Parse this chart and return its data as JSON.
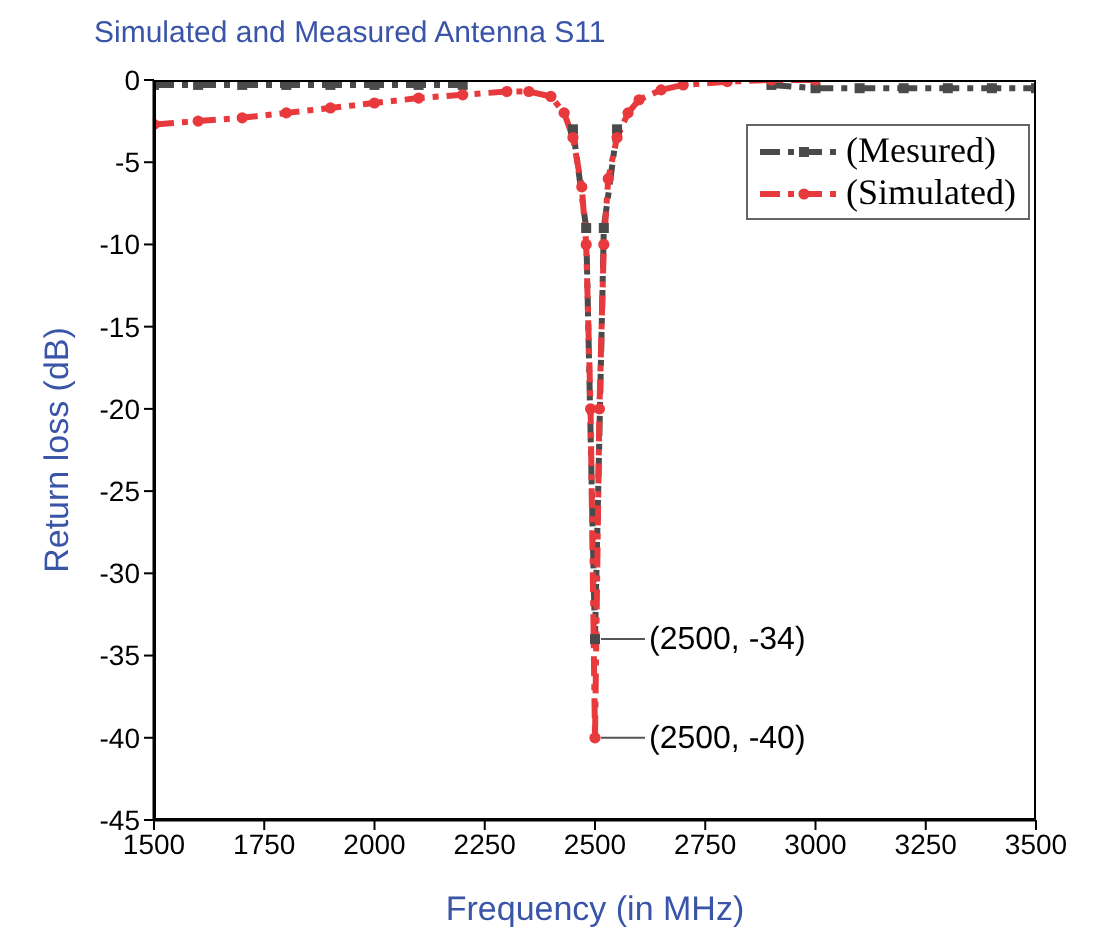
{
  "chart_data": {
    "type": "line",
    "title": "Simulated and Measured Antenna S11",
    "xlabel": "Frequency (in MHz)",
    "ylabel": "Return loss (dB)",
    "xlim": [
      1500,
      3500
    ],
    "xticks": [
      1500,
      1750,
      2000,
      2250,
      2500,
      2750,
      3000,
      3250,
      3500
    ],
    "ylim": [
      -45,
      0
    ],
    "yticks": [
      -45,
      -40,
      -35,
      -30,
      -25,
      -20,
      -15,
      -10,
      -5,
      0
    ],
    "grid": false,
    "legend": "top right",
    "line_style": "dashed",
    "series": [
      {
        "name": "(Mesured)",
        "color": "#4a4a4a",
        "marker": "square",
        "x": [
          1500,
          1600,
          1700,
          1800,
          1900,
          2000,
          2100,
          2200,
          2300,
          2400,
          2450,
          2480,
          2500,
          2520,
          2550,
          2600,
          2700,
          2800,
          2900,
          3000,
          3100,
          3200,
          3300,
          3400,
          3500
        ],
        "values": [
          -0.3,
          -0.3,
          -0.3,
          -0.3,
          -0.3,
          -0.3,
          -0.3,
          -0.3,
          null,
          null,
          -3,
          -9,
          -34,
          -9,
          -3,
          null,
          null,
          null,
          -0.3,
          -0.5,
          -0.5,
          -0.5,
          -0.5,
          -0.5,
          -0.5
        ]
      },
      {
        "name": "(Simulated)",
        "color": "#e8393c",
        "marker": "circle",
        "x": [
          1500,
          1600,
          1700,
          1800,
          1900,
          2000,
          2100,
          2200,
          2300,
          2350,
          2400,
          2430,
          2450,
          2470,
          2480,
          2490,
          2500,
          2510,
          2520,
          2530,
          2550,
          2575,
          2600,
          2650,
          2700,
          2800,
          2900,
          3000
        ],
        "values": [
          -2.7,
          -2.5,
          -2.3,
          -2.0,
          -1.7,
          -1.4,
          -1.1,
          -0.9,
          -0.7,
          -0.7,
          -1.0,
          -2.0,
          -3.5,
          -6.5,
          -10,
          -20,
          -40,
          -20,
          -10,
          -6,
          -3.5,
          -2.0,
          -1.2,
          -0.6,
          -0.3,
          -0.1,
          0,
          0
        ]
      }
    ],
    "annotations": [
      {
        "text": "(2500, -34)",
        "x": 2500,
        "y": -34
      },
      {
        "text": "(2500, -40)",
        "x": 2500,
        "y": -40
      }
    ]
  }
}
